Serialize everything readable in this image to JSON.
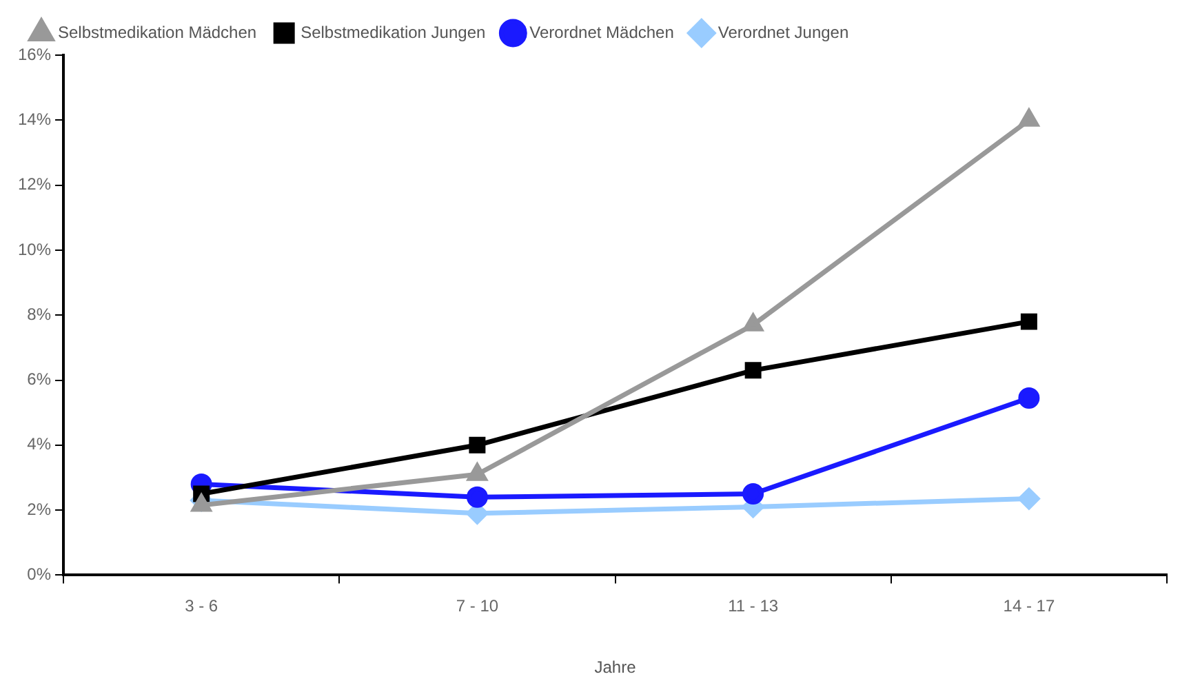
{
  "chart_data": {
    "type": "line",
    "xlabel": "Jahre",
    "categories": [
      "3 - 6",
      "7 - 10",
      "11 - 13",
      "14 - 17"
    ],
    "series": [
      {
        "name": "Verordnet Jungen",
        "color": "#99ccff",
        "marker": "diamond",
        "values": [
          2.3,
          1.9,
          2.1,
          2.35
        ]
      },
      {
        "name": "Verordnet Mädchen",
        "color": "#1a1aff",
        "marker": "circle",
        "values": [
          2.8,
          2.4,
          2.5,
          5.45
        ]
      },
      {
        "name": "Selbstmedikation Jungen",
        "color": "#000000",
        "marker": "square",
        "values": [
          2.5,
          4.0,
          6.3,
          7.8
        ]
      },
      {
        "name": "Selbstmedikation Mädchen",
        "color": "#999999",
        "marker": "triangle",
        "values": [
          2.15,
          3.1,
          7.7,
          14.0
        ]
      }
    ],
    "ylim": [
      0,
      16
    ],
    "yticks": [
      {
        "value": 0,
        "label": "0%"
      },
      {
        "value": 2,
        "label": "2%"
      },
      {
        "value": 4,
        "label": "4%"
      },
      {
        "value": 6,
        "label": "6%"
      },
      {
        "value": 8,
        "label": "8%"
      },
      {
        "value": 10,
        "label": "10%"
      },
      {
        "value": 12,
        "label": "12%"
      },
      {
        "value": 14,
        "label": "14%"
      },
      {
        "value": 16,
        "label": "16%"
      }
    ],
    "grid": false,
    "legend": "top"
  }
}
